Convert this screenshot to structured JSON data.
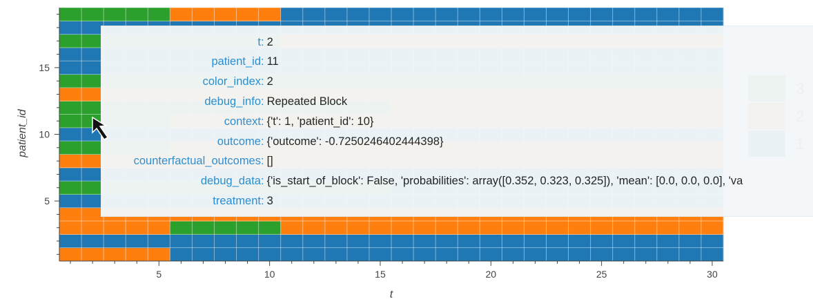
{
  "chart_data": {
    "type": "heatmap",
    "xlabel": "t",
    "ylabel": "patient_id",
    "xlim": [
      0.5,
      30.5
    ],
    "ylim": [
      0.5,
      19.5
    ],
    "xticks": [
      5,
      10,
      15,
      20,
      25,
      30
    ],
    "yticks": [
      5,
      10,
      15
    ],
    "colors": {
      "1": "#1f77b4",
      "2": "#ff7f0e",
      "3": "#2ca02c"
    },
    "legend": {
      "labels": [
        "3",
        "2",
        "1"
      ],
      "placement": "right"
    },
    "grid": true,
    "rows": [
      {
        "patient_id": 1,
        "values": [
          2,
          2,
          2,
          2,
          2,
          1,
          1,
          1,
          1,
          1,
          1,
          1,
          1,
          1,
          1,
          1,
          1,
          1,
          1,
          1,
          1,
          1,
          1,
          1,
          1,
          1,
          1,
          1,
          1,
          1
        ]
      },
      {
        "patient_id": 2,
        "values": [
          1,
          1,
          1,
          1,
          1,
          1,
          1,
          1,
          1,
          1,
          1,
          1,
          1,
          1,
          1,
          1,
          1,
          1,
          1,
          1,
          1,
          1,
          1,
          1,
          1,
          1,
          1,
          1,
          1,
          1
        ]
      },
      {
        "patient_id": 3,
        "values": [
          2,
          2,
          2,
          2,
          2,
          3,
          3,
          3,
          3,
          3,
          2,
          2,
          2,
          2,
          2,
          2,
          2,
          2,
          2,
          2,
          2,
          2,
          2,
          2,
          2,
          2,
          2,
          2,
          2,
          2
        ]
      },
      {
        "patient_id": 4,
        "values": [
          2,
          2,
          2,
          2,
          2,
          2,
          2,
          2,
          2,
          2,
          2,
          2,
          2,
          2,
          2,
          2,
          2,
          2,
          2,
          2,
          2,
          2,
          2,
          2,
          2,
          2,
          2,
          2,
          2,
          2
        ]
      },
      {
        "patient_id": 5,
        "values": [
          1,
          1,
          1,
          1,
          1,
          1,
          1,
          1,
          1,
          1,
          1,
          1,
          1,
          1,
          1,
          1,
          1,
          1,
          1,
          1,
          1,
          1,
          1,
          1,
          1,
          1,
          1,
          1,
          1,
          1
        ]
      },
      {
        "patient_id": 6,
        "values": [
          3,
          3,
          3,
          3,
          3,
          3,
          3,
          3,
          3,
          3,
          3,
          3,
          3,
          3,
          3,
          1,
          1,
          1,
          1,
          1,
          1,
          1,
          1,
          1,
          1,
          1,
          1,
          1,
          1,
          1
        ]
      },
      {
        "patient_id": 7,
        "values": [
          1,
          1,
          1,
          1,
          1,
          1,
          1,
          1,
          1,
          1,
          1,
          1,
          1,
          1,
          1,
          1,
          1,
          1,
          1,
          1,
          1,
          1,
          1,
          1,
          1,
          1,
          1,
          1,
          1,
          1
        ]
      },
      {
        "patient_id": 8,
        "values": [
          2,
          2,
          2,
          2,
          2,
          2,
          2,
          2,
          2,
          2,
          2,
          2,
          2,
          2,
          2,
          2,
          2,
          2,
          2,
          2,
          2,
          2,
          2,
          2,
          2,
          2,
          2,
          2,
          2,
          2
        ]
      },
      {
        "patient_id": 9,
        "values": [
          3,
          3,
          3,
          3,
          3,
          2,
          2,
          2,
          2,
          2,
          2,
          2,
          2,
          2,
          2,
          2,
          2,
          2,
          2,
          2,
          2,
          2,
          2,
          2,
          2,
          2,
          2,
          2,
          2,
          2
        ]
      },
      {
        "patient_id": 10,
        "values": [
          1,
          1,
          1,
          1,
          1,
          1,
          1,
          1,
          1,
          1,
          1,
          1,
          1,
          1,
          1,
          1,
          1,
          1,
          1,
          1,
          1,
          1,
          1,
          1,
          1,
          1,
          1,
          1,
          1,
          1
        ]
      },
      {
        "patient_id": 11,
        "values": [
          3,
          3,
          3,
          3,
          3,
          2,
          2,
          2,
          2,
          2,
          2,
          2,
          2,
          2,
          2,
          2,
          2,
          2,
          2,
          2,
          2,
          2,
          2,
          2,
          2,
          2,
          2,
          2,
          2,
          2
        ]
      },
      {
        "patient_id": 12,
        "values": [
          3,
          3,
          3,
          3,
          3,
          3,
          3,
          3,
          3,
          3,
          3,
          3,
          3,
          3,
          3,
          2,
          2,
          2,
          2,
          2,
          2,
          2,
          2,
          2,
          2,
          2,
          2,
          2,
          2,
          2
        ]
      },
      {
        "patient_id": 13,
        "values": [
          2,
          2,
          2,
          2,
          2,
          2,
          2,
          2,
          2,
          2,
          2,
          2,
          2,
          2,
          2,
          2,
          2,
          2,
          2,
          2,
          2,
          2,
          2,
          2,
          2,
          2,
          2,
          2,
          2,
          2
        ]
      },
      {
        "patient_id": 14,
        "values": [
          3,
          3,
          3,
          3,
          3,
          3,
          3,
          3,
          3,
          3,
          3,
          3,
          3,
          3,
          3,
          3,
          3,
          3,
          3,
          3,
          3,
          3,
          3,
          3,
          3,
          3,
          3,
          3,
          3,
          3
        ]
      },
      {
        "patient_id": 15,
        "values": [
          1,
          1,
          1,
          1,
          1,
          1,
          1,
          1,
          1,
          1,
          1,
          1,
          1,
          1,
          1,
          1,
          1,
          1,
          1,
          1,
          1,
          1,
          1,
          1,
          1,
          1,
          1,
          1,
          1,
          1
        ]
      },
      {
        "patient_id": 16,
        "values": [
          1,
          1,
          1,
          1,
          1,
          1,
          1,
          1,
          1,
          1,
          1,
          1,
          1,
          1,
          1,
          1,
          1,
          1,
          1,
          1,
          1,
          1,
          1,
          1,
          1,
          1,
          1,
          1,
          1,
          1
        ]
      },
      {
        "patient_id": 17,
        "values": [
          3,
          3,
          3,
          3,
          3,
          3,
          3,
          3,
          3,
          3,
          2,
          2,
          2,
          2,
          2,
          2,
          2,
          2,
          2,
          2,
          2,
          2,
          2,
          2,
          2,
          2,
          2,
          2,
          2,
          2
        ]
      },
      {
        "patient_id": 18,
        "values": [
          1,
          1,
          1,
          1,
          1,
          1,
          1,
          1,
          1,
          1,
          1,
          1,
          1,
          1,
          1,
          1,
          1,
          1,
          1,
          1,
          1,
          1,
          1,
          1,
          1,
          1,
          1,
          1,
          1,
          1
        ]
      },
      {
        "patient_id": 19,
        "values": [
          3,
          3,
          3,
          3,
          3,
          2,
          2,
          2,
          2,
          2,
          1,
          1,
          1,
          1,
          1,
          1,
          1,
          1,
          1,
          1,
          1,
          1,
          1,
          1,
          1,
          1,
          1,
          1,
          1,
          1
        ]
      }
    ]
  },
  "tooltip": {
    "rows": [
      {
        "key": "t",
        "value": "2"
      },
      {
        "key": "patient_id",
        "value": "11"
      },
      {
        "key": "color_index",
        "value": "2"
      },
      {
        "key": "debug_info",
        "value": "Repeated Block"
      },
      {
        "key": "context",
        "value": "{'t': 1, 'patient_id': 10}"
      },
      {
        "key": "outcome",
        "value": "{'outcome': -0.7250246402444398}"
      },
      {
        "key": "counterfactual_outcomes",
        "value": "[]"
      },
      {
        "key": "debug_data",
        "value": "{'is_start_of_block': False, 'probabilities': array([0.352, 0.323, 0.325]), 'mean': [0.0, 0.0, 0.0], 'va"
      },
      {
        "key": "treatment",
        "value": "3"
      }
    ]
  }
}
